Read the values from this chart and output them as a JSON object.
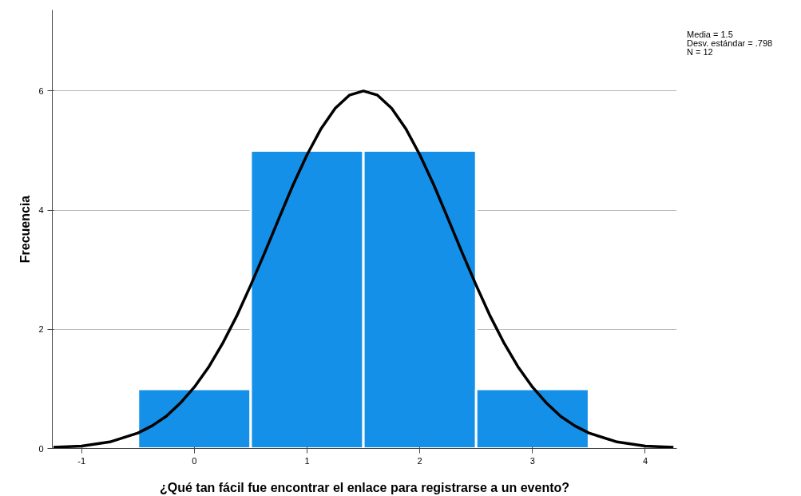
{
  "chart_data": {
    "type": "histogram",
    "xlabel": "¿Qué tan fácil fue encontrar el enlace para registrarse a un evento?",
    "ylabel": "Frecuencia",
    "bins": [
      -0.5,
      0.5,
      1.5,
      2.5,
      3.5
    ],
    "series": [
      {
        "type": "histogram",
        "color": "#1490e8",
        "values": [
          1,
          5,
          5,
          1
        ]
      },
      {
        "type": "line",
        "color": "#000000",
        "x": [
          -1.25,
          -1,
          -0.75,
          -0.5,
          -0.375,
          -0.25,
          -0.125,
          0,
          0.125,
          0.25,
          0.375,
          0.5,
          0.625,
          0.75,
          0.875,
          1,
          1.125,
          1.25,
          1.375,
          1.5,
          1.625,
          1.75,
          1.875,
          2,
          2.125,
          2.25,
          2.375,
          2.5,
          2.625,
          2.75,
          2.875,
          3,
          3.125,
          3.25,
          3.375,
          3.5,
          3.75,
          4,
          4.25
        ],
        "values": [
          0.02,
          0.04,
          0.11,
          0.26,
          0.38,
          0.54,
          0.76,
          1.03,
          1.36,
          1.76,
          2.22,
          2.74,
          3.29,
          3.86,
          4.42,
          4.93,
          5.37,
          5.71,
          5.93,
          6.0,
          5.93,
          5.71,
          5.37,
          4.93,
          4.42,
          3.86,
          3.29,
          2.74,
          2.22,
          1.76,
          1.36,
          1.03,
          0.76,
          0.54,
          0.38,
          0.26,
          0.11,
          0.04,
          0.02
        ]
      }
    ],
    "xlim": [
      -1.26,
      4.28
    ],
    "ylim": [
      0,
      7.36
    ],
    "xticks": [
      -1,
      0,
      1,
      2,
      3,
      4
    ],
    "yticks": [
      0,
      2,
      4,
      6
    ],
    "grid": "y",
    "annotations": [
      "Media = 1.5",
      "Desv. estándar = .798",
      "N = 12"
    ]
  }
}
